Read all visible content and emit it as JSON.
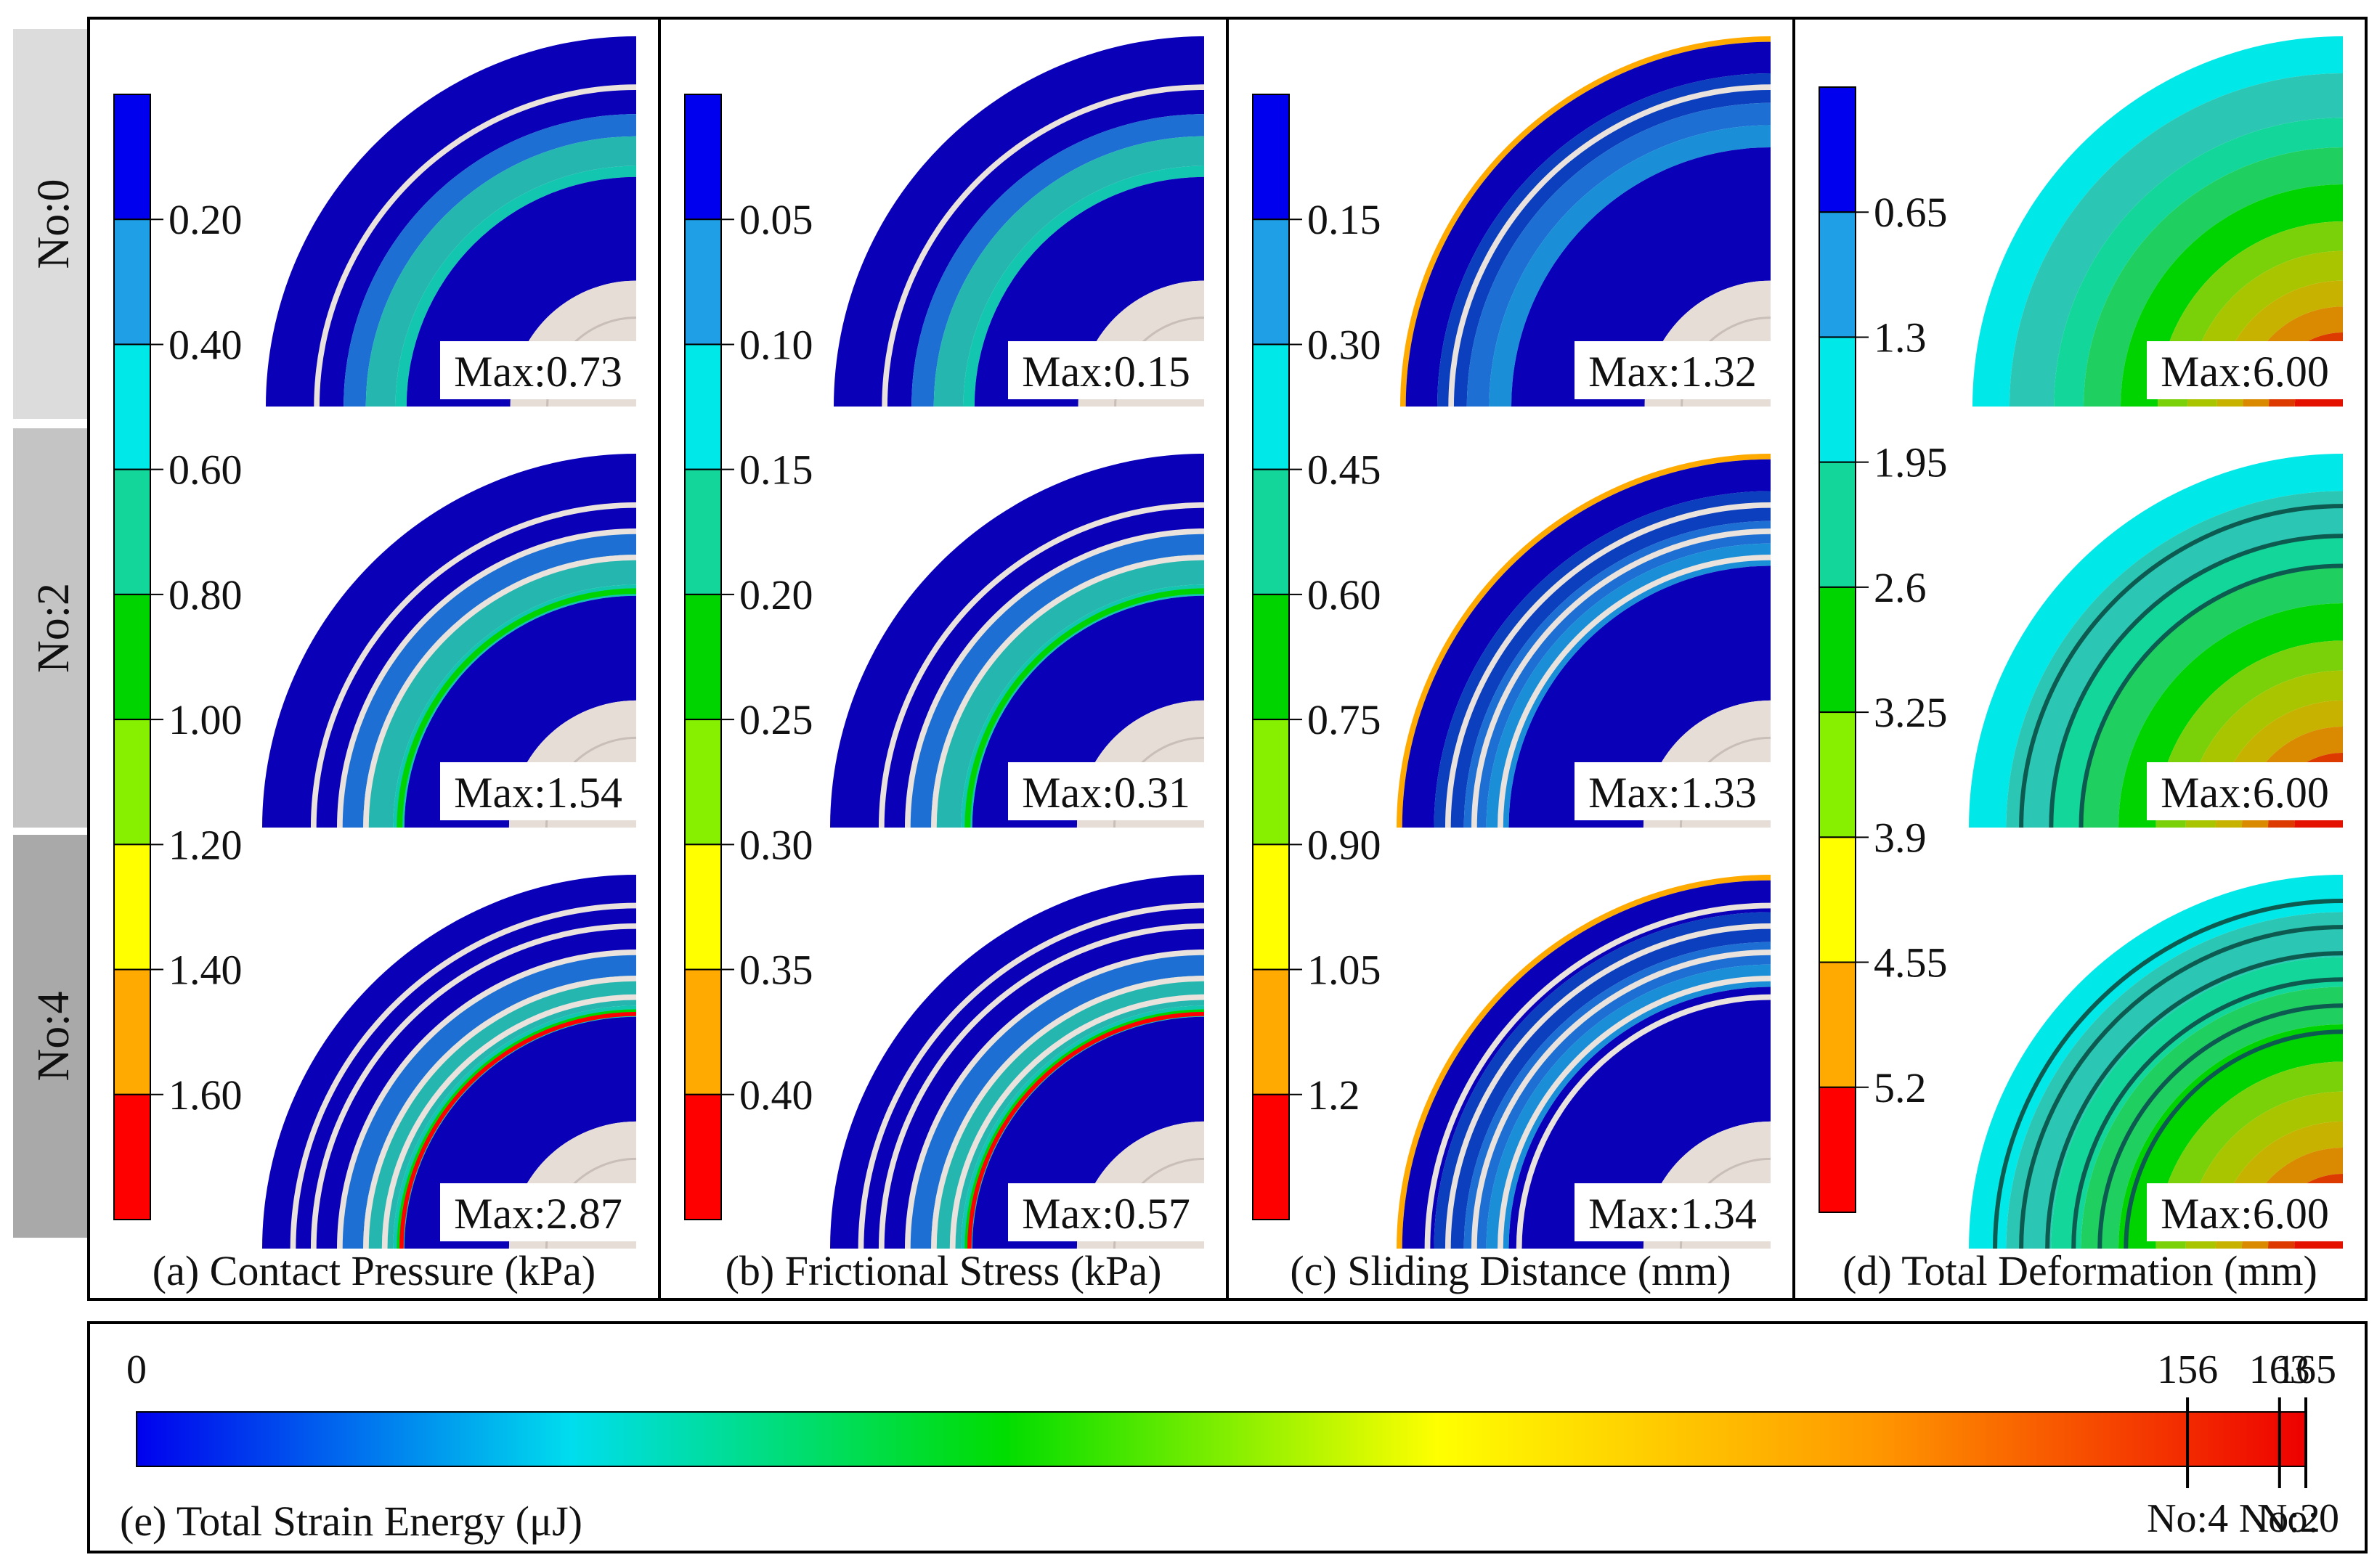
{
  "figure": {
    "rows": [
      {
        "label": "No:0",
        "color": "#dcdcdc"
      },
      {
        "label": "No:2",
        "color": "#c4c4c4"
      },
      {
        "label": "No:4",
        "color": "#a9a9a9"
      }
    ],
    "panels": [
      {
        "caption": "(a) Contact Pressure (kPa)",
        "ticks": [
          "0.20",
          "0.40",
          "0.60",
          "0.80",
          "1.00",
          "1.20",
          "1.40",
          "1.60"
        ],
        "max_labels": [
          "Max:0.73",
          "Max:1.54",
          "Max:2.87"
        ],
        "kind": "contact",
        "gaps": [
          1,
          3,
          5
        ]
      },
      {
        "caption": "(b) Frictional Stress (kPa)",
        "ticks": [
          "0.05",
          "0.10",
          "0.15",
          "0.20",
          "0.25",
          "0.30",
          "0.35",
          "0.40"
        ],
        "max_labels": [
          "Max:0.15",
          "Max:0.31",
          "Max:0.57"
        ],
        "kind": "contact",
        "gaps": [
          1,
          3,
          5
        ]
      },
      {
        "caption": "(c) Sliding Distance (mm)",
        "ticks": [
          "0.15",
          "0.30",
          "0.45",
          "0.60",
          "0.75",
          "0.90",
          "1.05",
          "1.2"
        ],
        "max_labels": [
          "Max:1.32",
          "Max:1.33",
          "Max:1.34"
        ],
        "kind": "sliding",
        "gaps": [
          1,
          3,
          5
        ]
      },
      {
        "caption": "(d) Total Deformation (mm)",
        "ticks": [
          "0.65",
          "1.3",
          "1.95",
          "2.6",
          "3.25",
          "3.9",
          "4.55",
          "5.2"
        ],
        "max_labels": [
          "Max:6.00",
          "Max:6.00",
          "Max:6.00"
        ],
        "kind": "deform",
        "gaps": [
          0,
          3,
          6
        ]
      }
    ],
    "legend_colors": [
      "#0000ee",
      "#1e9fe6",
      "#00e8e8",
      "#13d69a",
      "#00d400",
      "#86f000",
      "#ffff00",
      "#ffaa00",
      "#ff0000"
    ]
  },
  "chart_data": {
    "type": "bar",
    "title": "(e) Total Strain Energy (μJ)",
    "categories": [
      "No:4",
      "No:2",
      "No:0"
    ],
    "values": [
      156,
      163,
      165
    ],
    "range": [
      0,
      165
    ],
    "tick_labels": [
      "0",
      "156",
      "163",
      "165"
    ],
    "colormap": [
      "#0000ee",
      "#00ddee",
      "#00dd00",
      "#ffff00",
      "#ff9900",
      "#ee0000"
    ]
  }
}
